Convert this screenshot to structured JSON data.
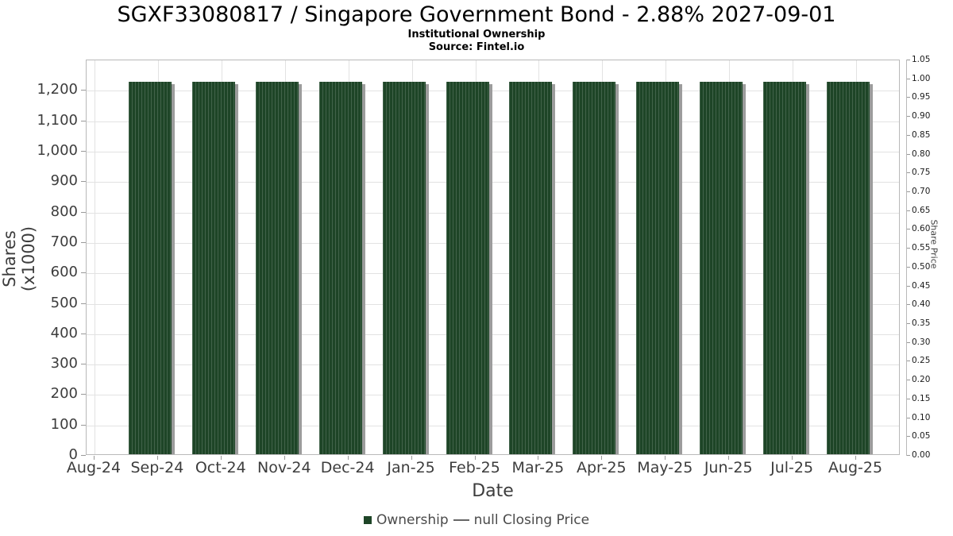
{
  "header": {
    "title": "SGXF33080817 / Singapore Government Bond - 2.88% 2027-09-01",
    "subtitle": "Institutional Ownership",
    "source": "Source: Fintel.io"
  },
  "chart_data": {
    "type": "bar",
    "title": "SGXF33080817 / Singapore Government Bond - 2.88% 2027-09-01",
    "subtitle": "Institutional Ownership",
    "source": "Source: Fintel.io",
    "xlabel": "Date",
    "categories": [
      "Aug-24",
      "Sep-24",
      "Oct-24",
      "Nov-24",
      "Dec-24",
      "Jan-25",
      "Feb-25",
      "Mar-25",
      "Apr-25",
      "May-25",
      "Jun-25",
      "Jul-25",
      "Aug-25"
    ],
    "series": [
      {
        "name": "Ownership",
        "type": "bar",
        "color": "#1e4527",
        "categories": [
          "Sep-24",
          "Oct-24",
          "Nov-24",
          "Dec-24",
          "Jan-25",
          "Feb-25",
          "Mar-25",
          "Apr-25",
          "May-25",
          "Jun-25",
          "Jul-25",
          "Aug-25"
        ],
        "values": [
          1230,
          1230,
          1230,
          1230,
          1230,
          1230,
          1230,
          1230,
          1230,
          1230,
          1230,
          1230
        ]
      },
      {
        "name": "null Closing Price",
        "type": "line",
        "color": "#666666",
        "values": []
      }
    ],
    "left_axis": {
      "label": "Shares (x1000)",
      "min": 0,
      "max": 1300,
      "tick_values": [
        0,
        100,
        200,
        300,
        400,
        500,
        600,
        700,
        800,
        900,
        1000,
        1100,
        1200
      ],
      "tick_labels": [
        "0",
        "100",
        "200",
        "300",
        "400",
        "500",
        "600",
        "700",
        "800",
        "900",
        "1,000",
        "1,100",
        "1,200"
      ]
    },
    "right_axis": {
      "label": "Share Price",
      "min": 0.0,
      "max": 1.05,
      "tick_labels": [
        "0.00",
        "0.05",
        "0.10",
        "0.15",
        "0.20",
        "0.25",
        "0.30",
        "0.35",
        "0.40",
        "0.45",
        "0.50",
        "0.55",
        "0.60",
        "0.65",
        "0.70",
        "0.75",
        "0.80",
        "0.85",
        "0.90",
        "0.95",
        "1.00",
        "1.05"
      ]
    },
    "grid": true,
    "legend_position": "bottom"
  },
  "legend": {
    "items": [
      {
        "label": "Ownership",
        "marker": "square",
        "color": "#1e4527"
      },
      {
        "label": "null Closing Price",
        "marker": "dash",
        "color": "#666666"
      }
    ]
  }
}
